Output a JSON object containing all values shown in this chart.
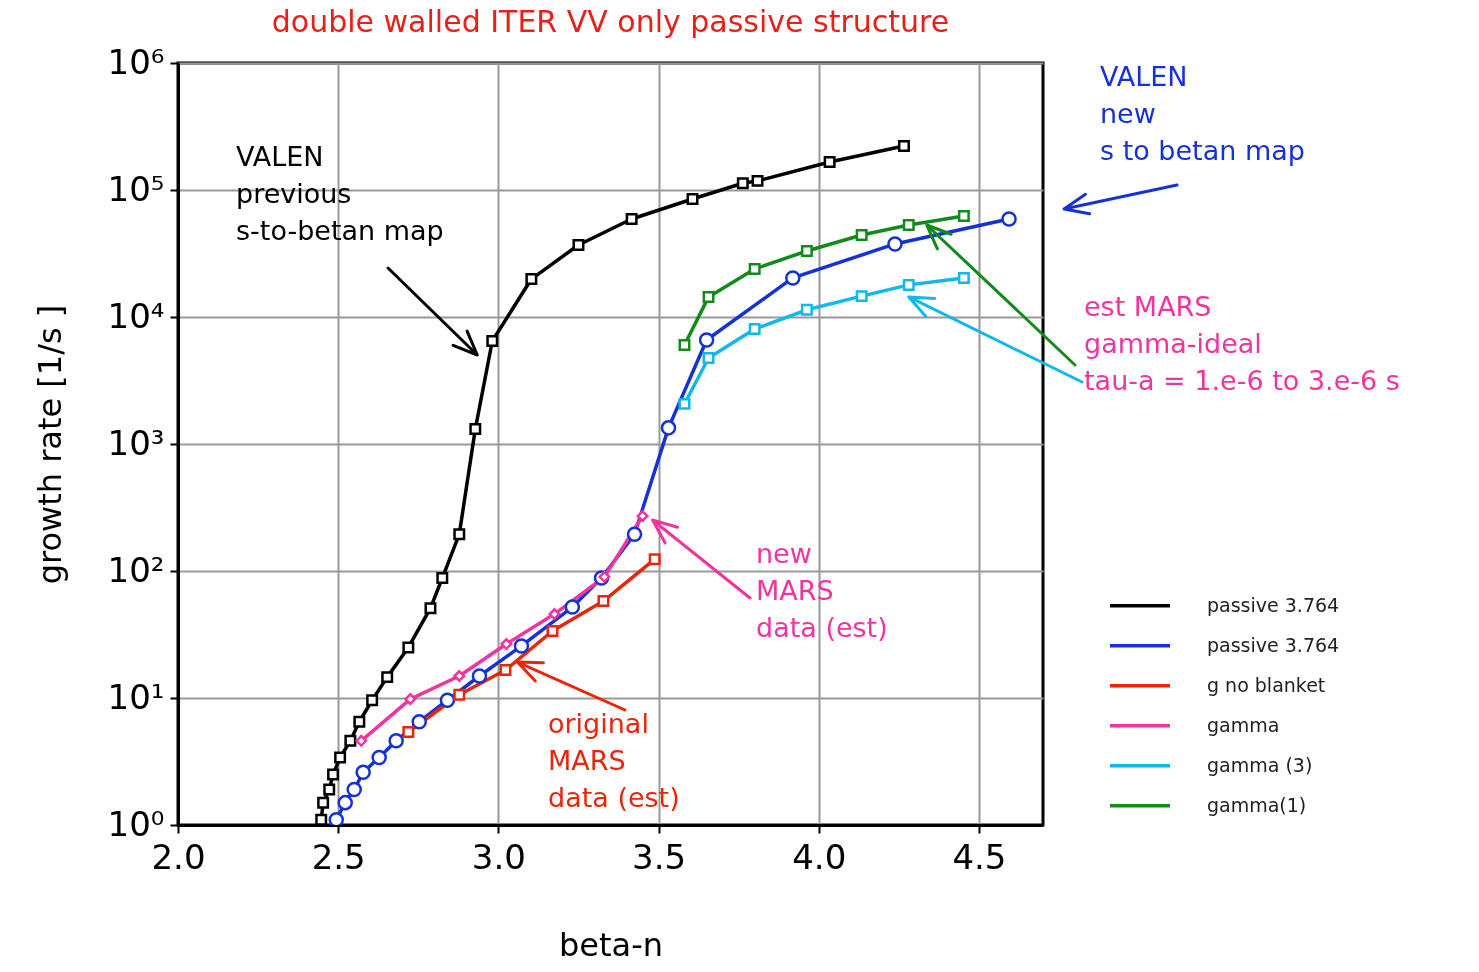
{
  "chart_data": {
    "type": "line",
    "title": "double  walled  ITER  VV  only  passive  structure",
    "xlabel": "beta-n",
    "ylabel": "growth rate    [1/s ]",
    "xlim": [
      2.0,
      4.7
    ],
    "xticks": [
      {
        "value": 2,
        "label": "2.0"
      },
      2.5,
      {
        "value": 3,
        "label": "3.0"
      },
      3.5,
      {
        "value": 4,
        "label": "4.0"
      },
      4.5
    ],
    "ylim": [
      1,
      1000000
    ],
    "log": true,
    "yticks": [
      {
        "value": 1,
        "label": "10⁰"
      },
      {
        "value": 10,
        "label": "10¹"
      },
      {
        "value": 100,
        "label": "10²"
      },
      {
        "value": 1000,
        "label": "10³"
      },
      {
        "value": 10000,
        "label": "10⁴"
      },
      {
        "value": 100000,
        "label": "10⁵"
      },
      {
        "value": 1000000,
        "label": "10⁶"
      }
    ],
    "grid": true,
    "legend": "right",
    "series": [
      {
        "name": "passive    3.764",
        "color": "#000000",
        "marker": "square",
        "x": [
          2.447,
          2.453,
          2.472,
          2.484,
          2.506,
          2.538,
          2.566,
          2.606,
          2.653,
          2.719,
          2.788,
          2.825,
          2.878,
          2.928,
          2.981,
          3.103,
          3.25,
          3.416,
          3.606,
          3.763,
          3.809,
          4.034,
          4.266
        ],
        "values": [
          1.1,
          1.5,
          1.9,
          2.5,
          3.4,
          4.6,
          6.5,
          9.6,
          14.6,
          25,
          51,
          88,
          195,
          1310,
          6470,
          19900,
          36900,
          59100,
          85000,
          113000,
          118000,
          166000,
          222000
        ]
      },
      {
        "name": "passive    3.764",
        "color": "#1432d8",
        "marker": "circle",
        "x": [
          2.494,
          2.522,
          2.55,
          2.578,
          2.628,
          2.681,
          2.753,
          2.841,
          2.941,
          3.072,
          3.231,
          3.322,
          3.425,
          3.531,
          3.65,
          3.919,
          4.238,
          4.594
        ],
        "values": [
          1.1,
          1.5,
          1.9,
          2.6,
          3.4,
          4.6,
          6.5,
          9.6,
          14.9,
          25.7,
          52,
          88,
          195,
          1340,
          6590,
          20300,
          37600,
          59100
        ]
      },
      {
        "name": "g no blanket",
        "color": "#e8260a",
        "marker": "square",
        "x": [
          2.719,
          2.878,
          3.022,
          3.169,
          3.328,
          3.488
        ],
        "values": [
          5.4,
          10.6,
          16.6,
          33.7,
          58,
          124
        ]
      },
      {
        "name": "gamma",
        "color": "#f0359e",
        "marker": "diamond",
        "x": [
          2.572,
          2.725,
          2.878,
          3.025,
          3.175,
          3.331,
          3.45
        ],
        "values": [
          4.6,
          9.8,
          14.9,
          26.6,
          45.8,
          90,
          271
        ]
      },
      {
        "name": "gamma (3)",
        "color": "#12b8ea",
        "marker": "square",
        "x": [
          3.581,
          3.656,
          3.8,
          3.963,
          4.134,
          4.281,
          4.453
        ],
        "values": [
          2070,
          4750,
          8050,
          11400,
          14600,
          17900,
          20300
        ]
      },
      {
        "name": "gamma(1)",
        "color": "#128a1c",
        "marker": "square",
        "x": [
          3.581,
          3.656,
          3.8,
          3.963,
          4.134,
          4.281,
          4.453
        ],
        "values": [
          6020,
          14400,
          23900,
          33100,
          44200,
          53000,
          62400
        ]
      }
    ],
    "annotations": [
      "VALEN\nprevious\ns-to-betan   map",
      "VALEN\nnew\ns to betan map",
      "est  MARS\ngamma-ideal\ntau-a   =  1.e-6  to  3.e-6  s",
      "new\nMARS\ndata  (est)",
      "original\nMARS\ndata  (est)"
    ]
  }
}
